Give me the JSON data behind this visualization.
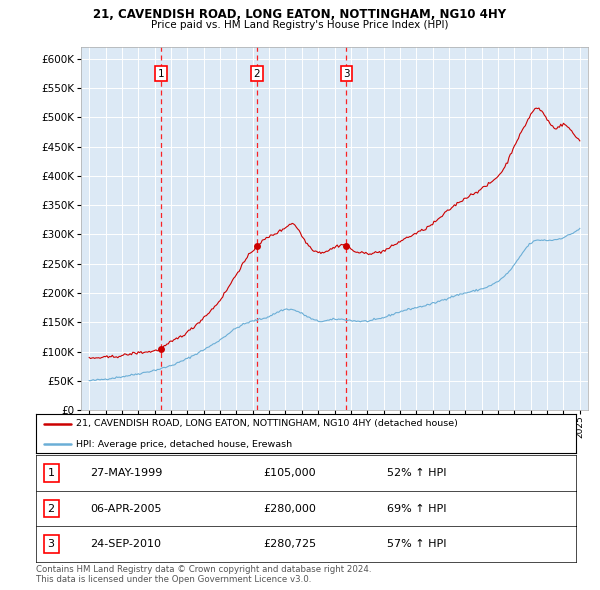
{
  "title": "21, CAVENDISH ROAD, LONG EATON, NOTTINGHAM, NG10 4HY",
  "subtitle": "Price paid vs. HM Land Registry's House Price Index (HPI)",
  "plot_bg_color": "#dce9f5",
  "red_line_color": "#cc0000",
  "blue_line_color": "#6baed6",
  "ylim": [
    0,
    620000
  ],
  "yticks": [
    0,
    50000,
    100000,
    150000,
    200000,
    250000,
    300000,
    350000,
    400000,
    450000,
    500000,
    550000,
    600000
  ],
  "xlim_start": 1994.5,
  "xlim_end": 2025.5,
  "sale_events": [
    {
      "num": 1,
      "year": 1999.37,
      "price": 105000
    },
    {
      "num": 2,
      "year": 2005.25,
      "price": 280000
    },
    {
      "num": 3,
      "year": 2010.73,
      "price": 280725
    }
  ],
  "legend_red": "21, CAVENDISH ROAD, LONG EATON, NOTTINGHAM, NG10 4HY (detached house)",
  "legend_blue": "HPI: Average price, detached house, Erewash",
  "footer1": "Contains HM Land Registry data © Crown copyright and database right 2024.",
  "footer2": "This data is licensed under the Open Government Licence v3.0.",
  "table_rows": [
    [
      "1",
      "27-MAY-1999",
      "£105,000",
      "52% ↑ HPI"
    ],
    [
      "2",
      "06-APR-2005",
      "£280,000",
      "69% ↑ HPI"
    ],
    [
      "3",
      "24-SEP-2010",
      "£280,725",
      "57% ↑ HPI"
    ]
  ]
}
